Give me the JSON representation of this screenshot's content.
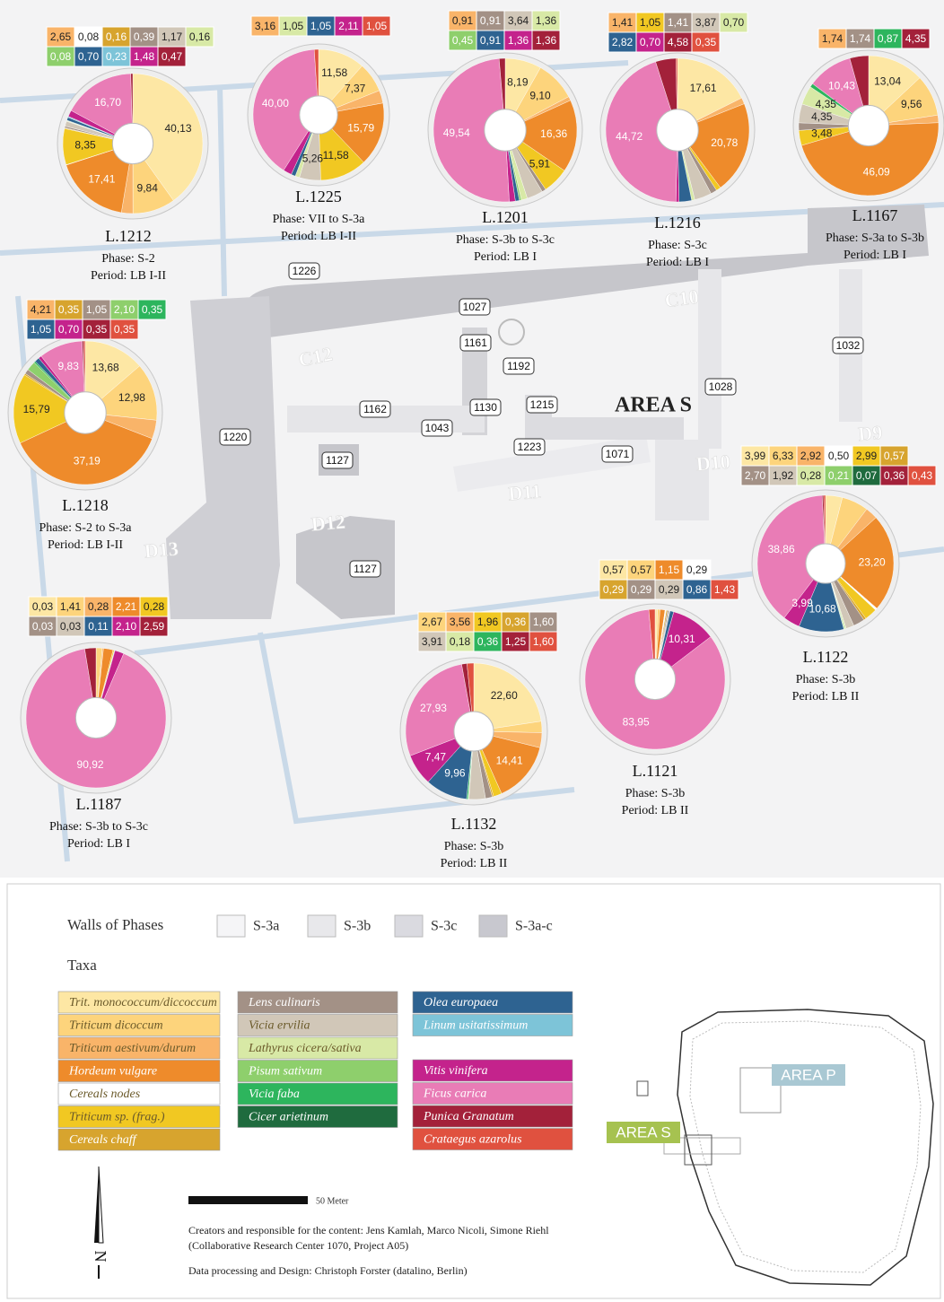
{
  "taxa": [
    {
      "name": "Trit. monococcum/diccoccum",
      "color": "#fde7a4"
    },
    {
      "name": "Triticum dicoccum",
      "color": "#fdd47c"
    },
    {
      "name": "Triticum aestivum/durum",
      "color": "#f9b469"
    },
    {
      "name": "Hordeum vulgare",
      "color": "#ee8b2b"
    },
    {
      "name": "Cereals nodes",
      "color": "#ffffff"
    },
    {
      "name": "Triticum sp. (frag.)",
      "color": "#f1c822"
    },
    {
      "name": "Cereals chaff",
      "color": "#d7a42e"
    },
    {
      "name": "Lens culinaris",
      "color": "#a39186"
    },
    {
      "name": "Vicia ervilia",
      "color": "#d1c7b8"
    },
    {
      "name": "Lathyrus cicera/sativa",
      "color": "#d8e9a6"
    },
    {
      "name": "Pisum sativum",
      "color": "#8ecf6c"
    },
    {
      "name": "Vicia faba",
      "color": "#2db55d"
    },
    {
      "name": "Cicer arietinum",
      "color": "#1f6b3e"
    },
    {
      "name": "Olea europaea",
      "color": "#2e6391"
    },
    {
      "name": "Linum usitatissimum",
      "color": "#7dc4d8"
    },
    {
      "name": "Vitis vinifera",
      "color": "#c4238c"
    },
    {
      "name": "Ficus carica",
      "color": "#e97cb6"
    },
    {
      "name": "Punica Granatum",
      "color": "#a3213a"
    },
    {
      "name": "Crataegus azarolus",
      "color": "#e0513f"
    }
  ],
  "loci": [
    {
      "label": "L.1212",
      "phase": "Phase: S-2",
      "period": "Period: LB I-II",
      "slices": [
        {
          "taxon": 0,
          "value": 40.13,
          "label": "40,13",
          "boxed": false
        },
        {
          "taxon": 1,
          "value": 9.84,
          "label": "9,84",
          "boxed": false
        },
        {
          "taxon": 2,
          "value": 2.65,
          "label": "2,65",
          "boxed": true
        },
        {
          "taxon": 3,
          "value": 17.41,
          "label": "17,41",
          "boxed": false
        },
        {
          "taxon": 4,
          "value": 0.08,
          "label": "0,08",
          "boxed": true
        },
        {
          "taxon": 5,
          "value": 8.35,
          "label": "8,35",
          "boxed": false
        },
        {
          "taxon": 6,
          "value": 0.16,
          "label": "0,16",
          "boxed": true
        },
        {
          "taxon": 7,
          "value": 0.39,
          "label": "0,39",
          "boxed": true
        },
        {
          "taxon": 8,
          "value": 1.17,
          "label": "1,17",
          "boxed": true
        },
        {
          "taxon": 9,
          "value": 0.16,
          "label": "0,16",
          "boxed": true
        },
        {
          "taxon": 10,
          "value": 0.08,
          "label": "0,08",
          "boxed": true
        },
        {
          "taxon": 13,
          "value": 0.7,
          "label": "0,70",
          "boxed": true
        },
        {
          "taxon": 14,
          "value": 0.23,
          "label": "0,23",
          "boxed": true
        },
        {
          "taxon": 15,
          "value": 1.48,
          "label": "1,48",
          "boxed": true
        },
        {
          "taxon": 16,
          "value": 16.7,
          "label": "16,70",
          "boxed": false
        },
        {
          "taxon": 17,
          "value": 0.47,
          "label": "0,47",
          "boxed": true
        }
      ]
    },
    {
      "label": "L.1225",
      "phase": "Phase: VII to S-3a",
      "period": "Period: LB I-II",
      "slices": [
        {
          "taxon": 0,
          "value": 11.58,
          "label": "11,58",
          "boxed": false
        },
        {
          "taxon": 1,
          "value": 7.37,
          "label": "7,37",
          "boxed": false
        },
        {
          "taxon": 2,
          "value": 3.16,
          "label": "3,16",
          "boxed": true
        },
        {
          "taxon": 3,
          "value": 15.79,
          "label": "15,79",
          "boxed": false
        },
        {
          "taxon": 5,
          "value": 11.58,
          "label": "11,58",
          "boxed": false
        },
        {
          "taxon": 8,
          "value": 5.26,
          "label": "5,26",
          "boxed": false
        },
        {
          "taxon": 9,
          "value": 1.05,
          "label": "1,05",
          "boxed": true
        },
        {
          "taxon": 13,
          "value": 1.05,
          "label": "1,05",
          "boxed": true
        },
        {
          "taxon": 15,
          "value": 2.11,
          "label": "2,11",
          "boxed": true
        },
        {
          "taxon": 16,
          "value": 40.0,
          "label": "40,00",
          "boxed": false
        },
        {
          "taxon": 18,
          "value": 1.05,
          "label": "1,05",
          "boxed": true
        }
      ]
    },
    {
      "label": "L.1201",
      "phase": "Phase: S-3b to S-3c",
      "period": "Period: LB I",
      "slices": [
        {
          "taxon": 0,
          "value": 8.19,
          "label": "8,19",
          "boxed": false
        },
        {
          "taxon": 1,
          "value": 9.1,
          "label": "9,10",
          "boxed": false
        },
        {
          "taxon": 2,
          "value": 0.91,
          "label": "0,91",
          "boxed": true
        },
        {
          "taxon": 3,
          "value": 16.36,
          "label": "16,36",
          "boxed": false
        },
        {
          "taxon": 5,
          "value": 5.91,
          "label": "5,91",
          "boxed": false
        },
        {
          "taxon": 7,
          "value": 0.91,
          "label": "0,91",
          "boxed": true
        },
        {
          "taxon": 8,
          "value": 3.64,
          "label": "3,64",
          "boxed": true
        },
        {
          "taxon": 9,
          "value": 1.36,
          "label": "1,36",
          "boxed": true
        },
        {
          "taxon": 10,
          "value": 0.45,
          "label": "0,45",
          "boxed": true
        },
        {
          "taxon": 13,
          "value": 0.91,
          "label": "0,91",
          "boxed": true
        },
        {
          "taxon": 15,
          "value": 1.36,
          "label": "1,36",
          "boxed": true
        },
        {
          "taxon": 16,
          "value": 49.54,
          "label": "49,54",
          "boxed": false
        },
        {
          "taxon": 17,
          "value": 1.36,
          "label": "1,36",
          "boxed": true
        }
      ]
    },
    {
      "label": "L.1216",
      "phase": "Phase: S-3c",
      "period": "Period: LB I",
      "slices": [
        {
          "taxon": 0,
          "value": 17.61,
          "label": "17,61",
          "boxed": false
        },
        {
          "taxon": 2,
          "value": 1.41,
          "label": "1,41",
          "boxed": true
        },
        {
          "taxon": 3,
          "value": 20.78,
          "label": "20,78",
          "boxed": false
        },
        {
          "taxon": 5,
          "value": 1.05,
          "label": "1,05",
          "boxed": true
        },
        {
          "taxon": 7,
          "value": 1.41,
          "label": "1,41",
          "boxed": true
        },
        {
          "taxon": 8,
          "value": 3.87,
          "label": "3,87",
          "boxed": true
        },
        {
          "taxon": 9,
          "value": 0.7,
          "label": "0,70",
          "boxed": true
        },
        {
          "taxon": 13,
          "value": 2.82,
          "label": "2,82",
          "boxed": true
        },
        {
          "taxon": 15,
          "value": 0.7,
          "label": "0,70",
          "boxed": true
        },
        {
          "taxon": 16,
          "value": 44.72,
          "label": "44,72",
          "boxed": false
        },
        {
          "taxon": 17,
          "value": 4.58,
          "label": "4,58",
          "boxed": true
        },
        {
          "taxon": 18,
          "value": 0.35,
          "label": "0,35",
          "boxed": true
        }
      ]
    },
    {
      "label": "L.1167",
      "phase": "Phase: S-3a to S-3b",
      "period": "Period: LB I",
      "slices": [
        {
          "taxon": 0,
          "value": 13.04,
          "label": "13,04",
          "boxed": false
        },
        {
          "taxon": 1,
          "value": 9.56,
          "label": "9,56",
          "boxed": false
        },
        {
          "taxon": 2,
          "value": 1.74,
          "label": "1,74",
          "boxed": true
        },
        {
          "taxon": 3,
          "value": 46.09,
          "label": "46,09",
          "boxed": false
        },
        {
          "taxon": 5,
          "value": 3.48,
          "label": "3,48",
          "boxed": false
        },
        {
          "taxon": 7,
          "value": 1.74,
          "label": "1,74",
          "boxed": true
        },
        {
          "taxon": 8,
          "value": 4.35,
          "label": "4,35",
          "boxed": false
        },
        {
          "taxon": 9,
          "value": 4.35,
          "label": "4,35",
          "boxed": false
        },
        {
          "taxon": 11,
          "value": 0.87,
          "label": "0,87",
          "boxed": true
        },
        {
          "taxon": 16,
          "value": 10.43,
          "label": "10,43",
          "boxed": false
        },
        {
          "taxon": 17,
          "value": 4.35,
          "label": "4,35",
          "boxed": true
        }
      ]
    },
    {
      "label": "L.1218",
      "phase": "Phase: S-2 to S-3a",
      "period": "Period: LB I-II",
      "slices": [
        {
          "taxon": 0,
          "value": 13.68,
          "label": "13,68",
          "boxed": false
        },
        {
          "taxon": 1,
          "value": 12.98,
          "label": "12,98",
          "boxed": false
        },
        {
          "taxon": 2,
          "value": 4.21,
          "label": "4,21",
          "boxed": true
        },
        {
          "taxon": 3,
          "value": 37.19,
          "label": "37,19",
          "boxed": false
        },
        {
          "taxon": 5,
          "value": 15.79,
          "label": "15,79",
          "boxed": false
        },
        {
          "taxon": 6,
          "value": 0.35,
          "label": "0,35",
          "boxed": true
        },
        {
          "taxon": 7,
          "value": 1.05,
          "label": "1,05",
          "boxed": true
        },
        {
          "taxon": 10,
          "value": 2.1,
          "label": "2,10",
          "boxed": true
        },
        {
          "taxon": 11,
          "value": 0.35,
          "label": "0,35",
          "boxed": true
        },
        {
          "taxon": 13,
          "value": 1.05,
          "label": "1,05",
          "boxed": true
        },
        {
          "taxon": 15,
          "value": 0.7,
          "label": "0,70",
          "boxed": true
        },
        {
          "taxon": 16,
          "value": 9.83,
          "label": "9,83",
          "boxed": false
        },
        {
          "taxon": 17,
          "value": 0.35,
          "label": "0,35",
          "boxed": true
        },
        {
          "taxon": 18,
          "value": 0.35,
          "label": "0,35",
          "boxed": true
        }
      ]
    },
    {
      "label": "L.1187",
      "phase": "Phase: S-3b to S-3c",
      "period": "Period: LB I",
      "slices": [
        {
          "taxon": 0,
          "value": 0.03,
          "label": "0,03",
          "boxed": true
        },
        {
          "taxon": 1,
          "value": 1.41,
          "label": "1,41",
          "boxed": true
        },
        {
          "taxon": 2,
          "value": 0.28,
          "label": "0,28",
          "boxed": true
        },
        {
          "taxon": 3,
          "value": 2.21,
          "label": "2,21",
          "boxed": true
        },
        {
          "taxon": 5,
          "value": 0.28,
          "label": "0,28",
          "boxed": true
        },
        {
          "taxon": 7,
          "value": 0.03,
          "label": "0,03",
          "boxed": true
        },
        {
          "taxon": 8,
          "value": 0.03,
          "label": "0,03",
          "boxed": true
        },
        {
          "taxon": 13,
          "value": 0.11,
          "label": "0,11",
          "boxed": true
        },
        {
          "taxon": 15,
          "value": 2.1,
          "label": "2,10",
          "boxed": true
        },
        {
          "taxon": 16,
          "value": 90.92,
          "label": "90,92",
          "boxed": false
        },
        {
          "taxon": 17,
          "value": 2.59,
          "label": "2,59",
          "boxed": true
        }
      ]
    },
    {
      "label": "L.1132",
      "phase": "Phase: S-3b",
      "period": "Period: LB II",
      "slices": [
        {
          "taxon": 0,
          "value": 22.6,
          "label": "22,60",
          "boxed": false
        },
        {
          "taxon": 1,
          "value": 2.67,
          "label": "2,67",
          "boxed": true
        },
        {
          "taxon": 2,
          "value": 3.56,
          "label": "3,56",
          "boxed": true
        },
        {
          "taxon": 3,
          "value": 14.41,
          "label": "14,41",
          "boxed": false
        },
        {
          "taxon": 5,
          "value": 1.96,
          "label": "1,96",
          "boxed": true
        },
        {
          "taxon": 6,
          "value": 0.36,
          "label": "0,36",
          "boxed": true
        },
        {
          "taxon": 7,
          "value": 1.6,
          "label": "1,60",
          "boxed": true
        },
        {
          "taxon": 8,
          "value": 3.91,
          "label": "3,91",
          "boxed": true
        },
        {
          "taxon": 9,
          "value": 0.18,
          "label": "0,18",
          "boxed": true
        },
        {
          "taxon": 11,
          "value": 0.36,
          "label": "0,36",
          "boxed": true
        },
        {
          "taxon": 13,
          "value": 9.96,
          "label": "9,96",
          "boxed": false
        },
        {
          "taxon": 15,
          "value": 7.47,
          "label": "7,47",
          "boxed": false
        },
        {
          "taxon": 16,
          "value": 27.93,
          "label": "27,93",
          "boxed": false
        },
        {
          "taxon": 17,
          "value": 1.25,
          "label": "1,25",
          "boxed": true
        },
        {
          "taxon": 18,
          "value": 1.6,
          "label": "1,60",
          "boxed": true
        }
      ]
    },
    {
      "label": "L.1121",
      "phase": "Phase: S-3b",
      "period": "Period: LB II",
      "slices": [
        {
          "taxon": 0,
          "value": 0.57,
          "label": "0,57",
          "boxed": true
        },
        {
          "taxon": 1,
          "value": 0.57,
          "label": "0,57",
          "boxed": true
        },
        {
          "taxon": 3,
          "value": 1.15,
          "label": "1,15",
          "boxed": true
        },
        {
          "taxon": 4,
          "value": 0.29,
          "label": "0,29",
          "boxed": true
        },
        {
          "taxon": 6,
          "value": 0.29,
          "label": "0,29",
          "boxed": true
        },
        {
          "taxon": 7,
          "value": 0.29,
          "label": "0,29",
          "boxed": true
        },
        {
          "taxon": 8,
          "value": 0.29,
          "label": "0,29",
          "boxed": true
        },
        {
          "taxon": 13,
          "value": 0.86,
          "label": "0,86",
          "boxed": true
        },
        {
          "taxon": 15,
          "value": 10.31,
          "label": "10,31",
          "boxed": false
        },
        {
          "taxon": 16,
          "value": 83.95,
          "label": "83,95",
          "boxed": false
        },
        {
          "taxon": 18,
          "value": 1.43,
          "label": "1,43",
          "boxed": true
        }
      ]
    },
    {
      "label": "L.1122",
      "phase": "Phase: S-3b",
      "period": "Period: LB II",
      "slices": [
        {
          "taxon": 0,
          "value": 3.99,
          "label": "3,99",
          "boxed": true
        },
        {
          "taxon": 1,
          "value": 6.33,
          "label": "6,33",
          "boxed": true
        },
        {
          "taxon": 2,
          "value": 2.92,
          "label": "2,92",
          "boxed": true
        },
        {
          "taxon": 3,
          "value": 23.2,
          "label": "23,20",
          "boxed": false
        },
        {
          "taxon": 4,
          "value": 0.5,
          "label": "0,50",
          "boxed": true
        },
        {
          "taxon": 5,
          "value": 2.99,
          "label": "2,99",
          "boxed": true
        },
        {
          "taxon": 6,
          "value": 0.57,
          "label": "0,57",
          "boxed": true
        },
        {
          "taxon": 7,
          "value": 2.7,
          "label": "2,70",
          "boxed": true
        },
        {
          "taxon": 8,
          "value": 1.92,
          "label": "1,92",
          "boxed": true
        },
        {
          "taxon": 9,
          "value": 0.28,
          "label": "0,28",
          "boxed": true
        },
        {
          "taxon": 10,
          "value": 0.21,
          "label": "0,21",
          "boxed": true
        },
        {
          "taxon": 12,
          "value": 0.07,
          "label": "0,07",
          "boxed": true
        },
        {
          "taxon": 13,
          "value": 10.68,
          "label": "10,68",
          "boxed": false
        },
        {
          "taxon": 15,
          "value": 3.99,
          "label": "3,99",
          "boxed": false
        },
        {
          "taxon": 16,
          "value": 38.86,
          "label": "38,86",
          "boxed": false
        },
        {
          "taxon": 17,
          "value": 0.36,
          "label": "0,36",
          "boxed": true
        },
        {
          "taxon": 18,
          "value": 0.43,
          "label": "0,43",
          "boxed": true
        }
      ]
    }
  ],
  "wall_labels": [
    "1226",
    "1027",
    "1161",
    "1192",
    "1162",
    "1130",
    "1215",
    "1028",
    "1032",
    "1220",
    "1043",
    "1127",
    "1223",
    "1071",
    "1127"
  ],
  "squares": [
    "C12",
    "C10",
    "D9",
    "D10",
    "D11",
    "D12",
    "D13"
  ],
  "area_label": "AREA S",
  "legend": {
    "walls_title": "Walls of Phases",
    "phases": [
      {
        "name": "S-3a",
        "color": "#f5f5f7"
      },
      {
        "name": "S-3b",
        "color": "#e8e8eb"
      },
      {
        "name": "S-3c",
        "color": "#dadae0"
      },
      {
        "name": "S-3a-c",
        "color": "#c8c8cf"
      }
    ],
    "taxa_title": "Taxa"
  },
  "scale": "50 Meter",
  "credits": [
    "Creators and responsible for the content: Jens Kamlah, Marco Nicoli, Simone Riehl",
    "(Collaborative Research Center 1070, Project A05)",
    "Data processing and Design: Christoph Forster (datalino, Berlin)"
  ],
  "inset": {
    "area_p": "AREA P",
    "area_s": "AREA S"
  },
  "north": "N"
}
